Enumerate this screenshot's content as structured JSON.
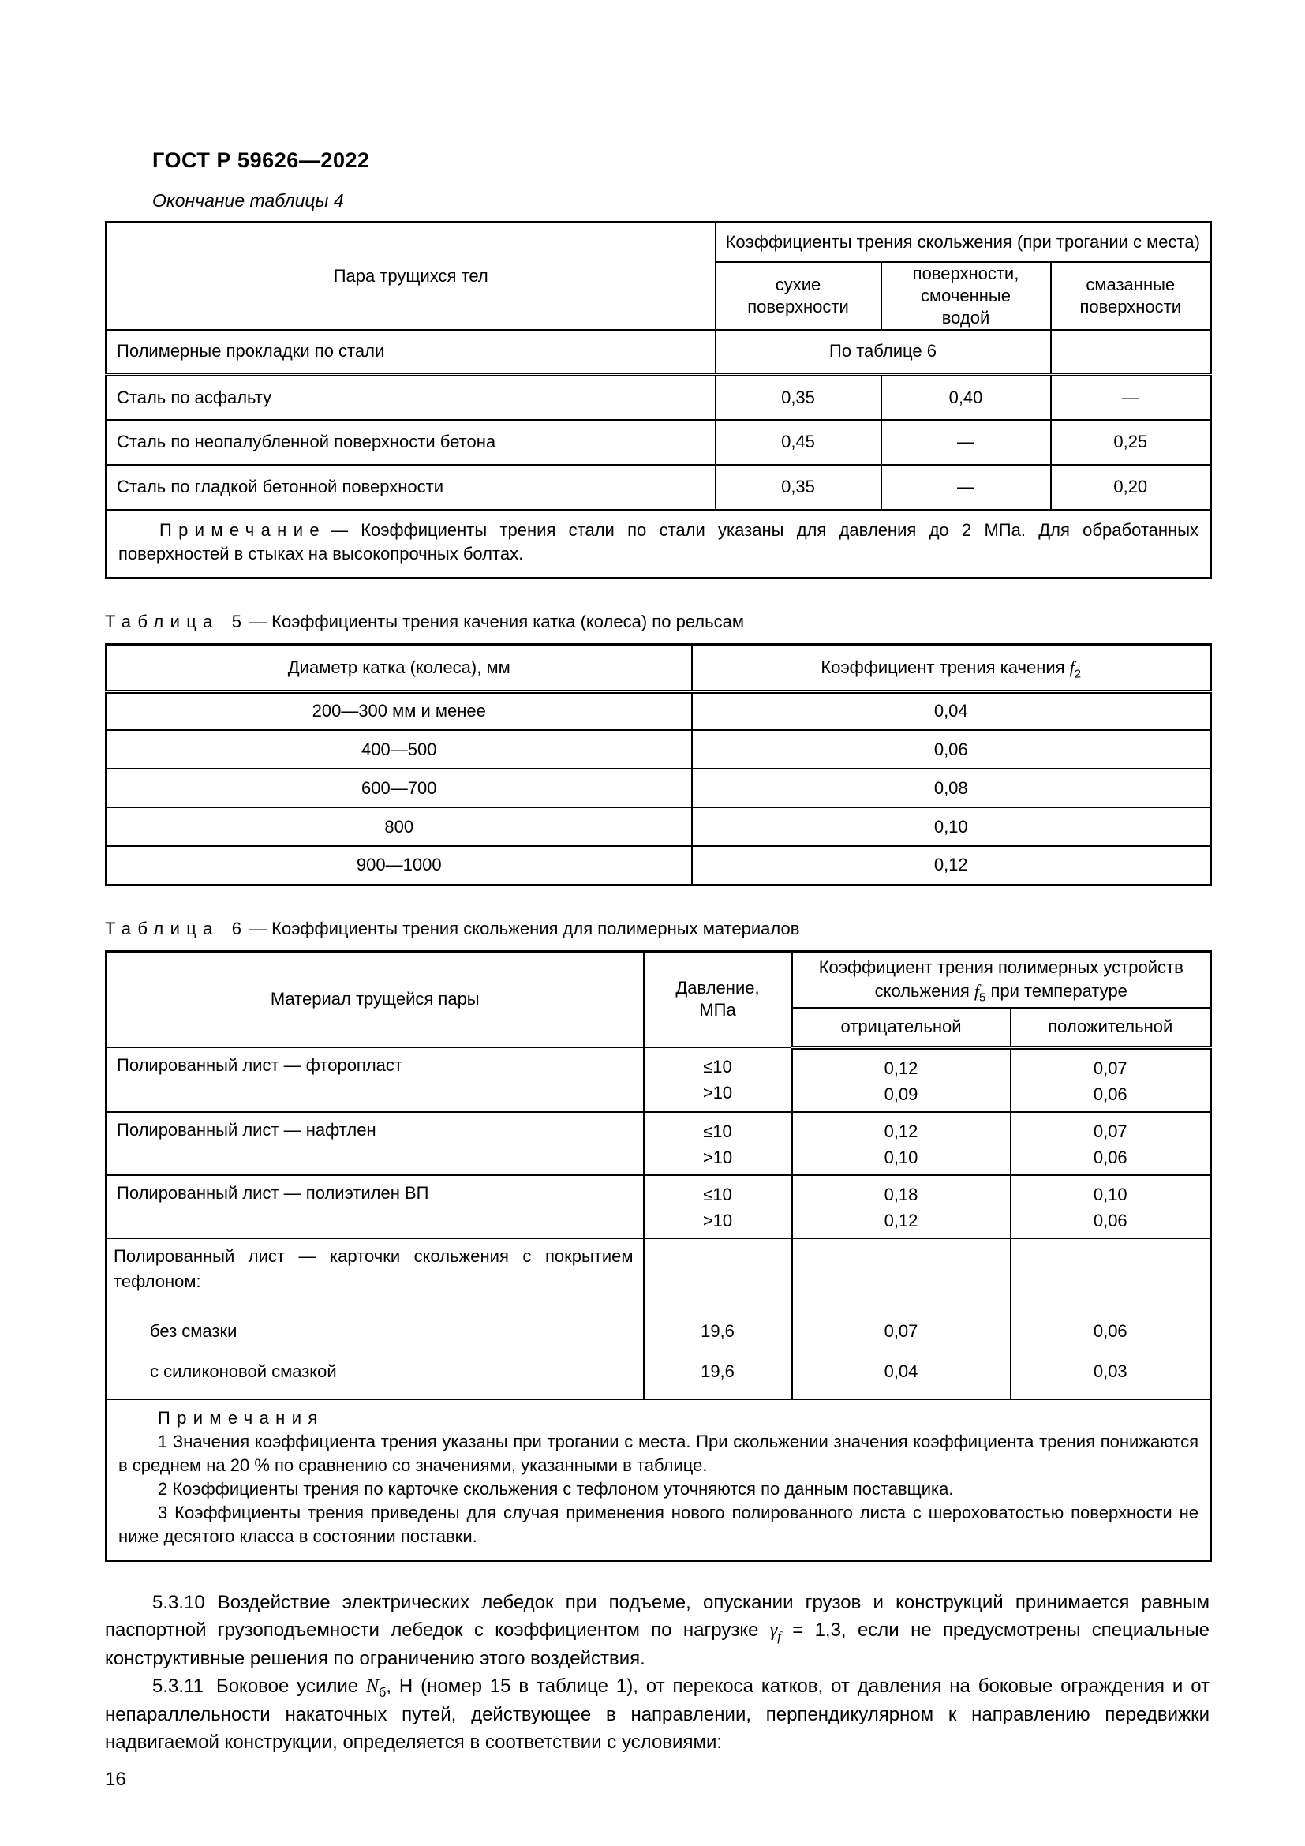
{
  "style": {
    "text_color": "#000000",
    "background": "#ffffff",
    "border_color": "#000000"
  },
  "header": {
    "standard": "ГОСТ Р 59626—2022",
    "page_number": "16"
  },
  "table4": {
    "continuation_label": "Окончание таблицы 4",
    "col_pair": "Пара трущихся тел",
    "group_header": "Коэффициенты трения скольжения (при трогании с места)",
    "sub_headers": [
      "сухие поверхности",
      "поверхности, смоченные водой",
      "смазанные поверхности"
    ],
    "rows": [
      {
        "name": "Полимерные прокладки по стали",
        "span_value": "По таблице 6",
        "lub": ""
      },
      {
        "name": "Сталь по асфальту",
        "dry": "0,35",
        "wet": "0,40",
        "lub": "—"
      },
      {
        "name": "Сталь по неопалубленной поверхности бетона",
        "dry": "0,45",
        "wet": "—",
        "lub": "0,25"
      },
      {
        "name": "Сталь по гладкой бетонной поверхности",
        "dry": "0,35",
        "wet": "—",
        "lub": "0,20"
      }
    ],
    "note_label": "Примечание",
    "note_text": "— Коэффициенты трения стали по стали указаны для давления до 2 МПа. Для обработанных поверхностей в стыках на высокопрочных болтах."
  },
  "table5": {
    "caption_label": "Таблица",
    "caption_number": "5",
    "caption_title": "— Коэффициенты трения качения катка (колеса) по рельсам",
    "col_diameter": "Диаметр катка (колеса), мм",
    "col_coeff_prefix": "Коэффициент трения качения ",
    "coeff_var": "f",
    "coeff_sub": "2",
    "rows": [
      [
        "200—300 мм и менее",
        "0,04"
      ],
      [
        "400—500",
        "0,06"
      ],
      [
        "600—700",
        "0,08"
      ],
      [
        "800",
        "0,10"
      ],
      [
        "900—1000",
        "0,12"
      ]
    ]
  },
  "table6": {
    "caption_label": "Таблица",
    "caption_number": "6",
    "caption_title": "— Коэффициенты трения скольжения для полимерных материалов",
    "col_material": "Материал трущейся пары",
    "col_pressure": "Давление, МПа",
    "group_prefix": "Коэффициент трения полимерных устройств скольжения ",
    "group_var": "f",
    "group_sub": "5",
    "group_suffix": " при температуре",
    "col_negative": "отрицательной",
    "col_positive": "положительной",
    "rows": [
      {
        "material": "Полированный лист — фторопласт",
        "pressure": [
          "≤10",
          ">10"
        ],
        "negative": [
          "0,12",
          "0,09"
        ],
        "positive": [
          "0,07",
          "0,06"
        ]
      },
      {
        "material": "Полированный лист — нафтлен",
        "pressure": [
          "≤10",
          ">10"
        ],
        "negative": [
          "0,12",
          "0,10"
        ],
        "positive": [
          "0,07",
          "0,06"
        ]
      },
      {
        "material": "Полированный лист — полиэтилен ВП",
        "pressure": [
          "≤10",
          ">10"
        ],
        "negative": [
          "0,18",
          "0,12"
        ],
        "positive": [
          "0,10",
          "0,06"
        ]
      }
    ],
    "cards_row": {
      "title": "Полированный лист — карточки скольжения с покрытием тефлоном:",
      "items": [
        {
          "name": "без смазки",
          "pressure": "19,6",
          "negative": "0,07",
          "positive": "0,06"
        },
        {
          "name": "с силиконовой смазкой",
          "pressure": "19,6",
          "negative": "0,04",
          "positive": "0,03"
        }
      ]
    },
    "notes_label": "Примечания",
    "notes": [
      "1  Значения коэффициента трения указаны при трогании с места. При скольжении значения коэффициента трения понижаются в среднем на 20 % по сравнению со значениями, указанными в таблице.",
      "2  Коэффициенты трения по карточке скольжения с тефлоном уточняются по данным поставщика.",
      "3  Коэффициенты трения приведены для случая применения нового полированного листа с шероховатостью поверхности не ниже десятого класса в состоянии поставки."
    ]
  },
  "paragraphs": {
    "p5310": {
      "num": "5.3.10",
      "text1": "Воздействие электрических лебедок при подъеме, опускании грузов и конструкций принимается равным паспортной грузоподъемности лебедок с коэффициентом по нагрузке ",
      "var": "γ",
      "sub": "f",
      "text2": " = 1,3, если не предусмотрены специальные конструктивные решения по ограничению этого воздействия."
    },
    "p5311": {
      "num": "5.3.11",
      "text1": "Боковое усилие ",
      "var": "N",
      "sub": "б",
      "text2": ", Н (номер 15 в таблице 1), от перекоса катков, от давления на боковые ограждения и от непараллельности накаточных путей, действующее в направлении, перпендикулярном к направлению передвижки надвигаемой конструкции, определяется в соответствии с условиями:"
    }
  }
}
